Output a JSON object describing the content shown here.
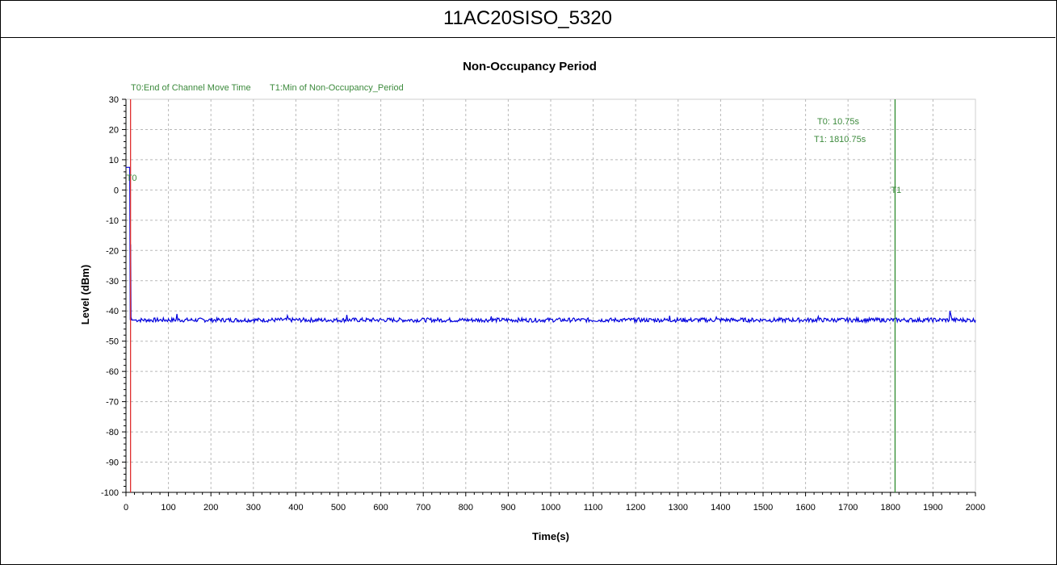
{
  "header": {
    "title": "11AC20SISO_5320"
  },
  "colors": {
    "signal": "#0000dd",
    "t0_line": "#e03030",
    "t1_line": "#2e8b2e",
    "marker_text": "#3c8a3c",
    "grid": "#b8b8b8"
  },
  "chart_data": {
    "type": "line",
    "title": "Non-Occupancy Period",
    "xlabel": "Time(s)",
    "ylabel": "Level (dBm)",
    "xlim": [
      0,
      2000
    ],
    "ylim": [
      -100,
      30
    ],
    "grid": true,
    "x_ticks": [
      "0",
      "100",
      "200",
      "300",
      "400",
      "500",
      "600",
      "700",
      "800",
      "900",
      "1000",
      "1100",
      "1200",
      "1300",
      "1400",
      "1500",
      "1600",
      "1700",
      "1800",
      "1900",
      "2000"
    ],
    "y_ticks": [
      "30",
      "20",
      "10",
      "0",
      "-10",
      "-20",
      "-30",
      "-40",
      "-50",
      "-60",
      "-70",
      "-80",
      "-90",
      "-100"
    ],
    "legend": {
      "t0": "T0:End of Channel Move Time",
      "t1": "T1:Min of Non-Occupancy_Period"
    },
    "markers": [
      {
        "label": "T0",
        "x": 10.75
      },
      {
        "label": "T1",
        "x": 1810.75
      }
    ],
    "annotation": {
      "t0_value": "T0: 10.75s",
      "t1_value": "T1: 1810.75s"
    },
    "series": [
      {
        "x": [
          0,
          3,
          6,
          7,
          8,
          9,
          10,
          11,
          12,
          13,
          14,
          20,
          120,
          300,
          380,
          520,
          700,
          860,
          1000,
          1200,
          1280,
          1390,
          1500,
          1630,
          1800,
          1940,
          1945,
          2000
        ],
        "y": [
          7.5,
          7.5,
          7.5,
          7.5,
          7.5,
          7.5,
          -43,
          -18,
          -43,
          -42.5,
          -43,
          -43,
          -41,
          -42.8,
          -41.5,
          -41.3,
          -42.5,
          -41.8,
          -42.8,
          -42.8,
          -41.6,
          -42,
          -42.8,
          -41.8,
          -43,
          -40,
          -43,
          -43
        ]
      }
    ]
  }
}
